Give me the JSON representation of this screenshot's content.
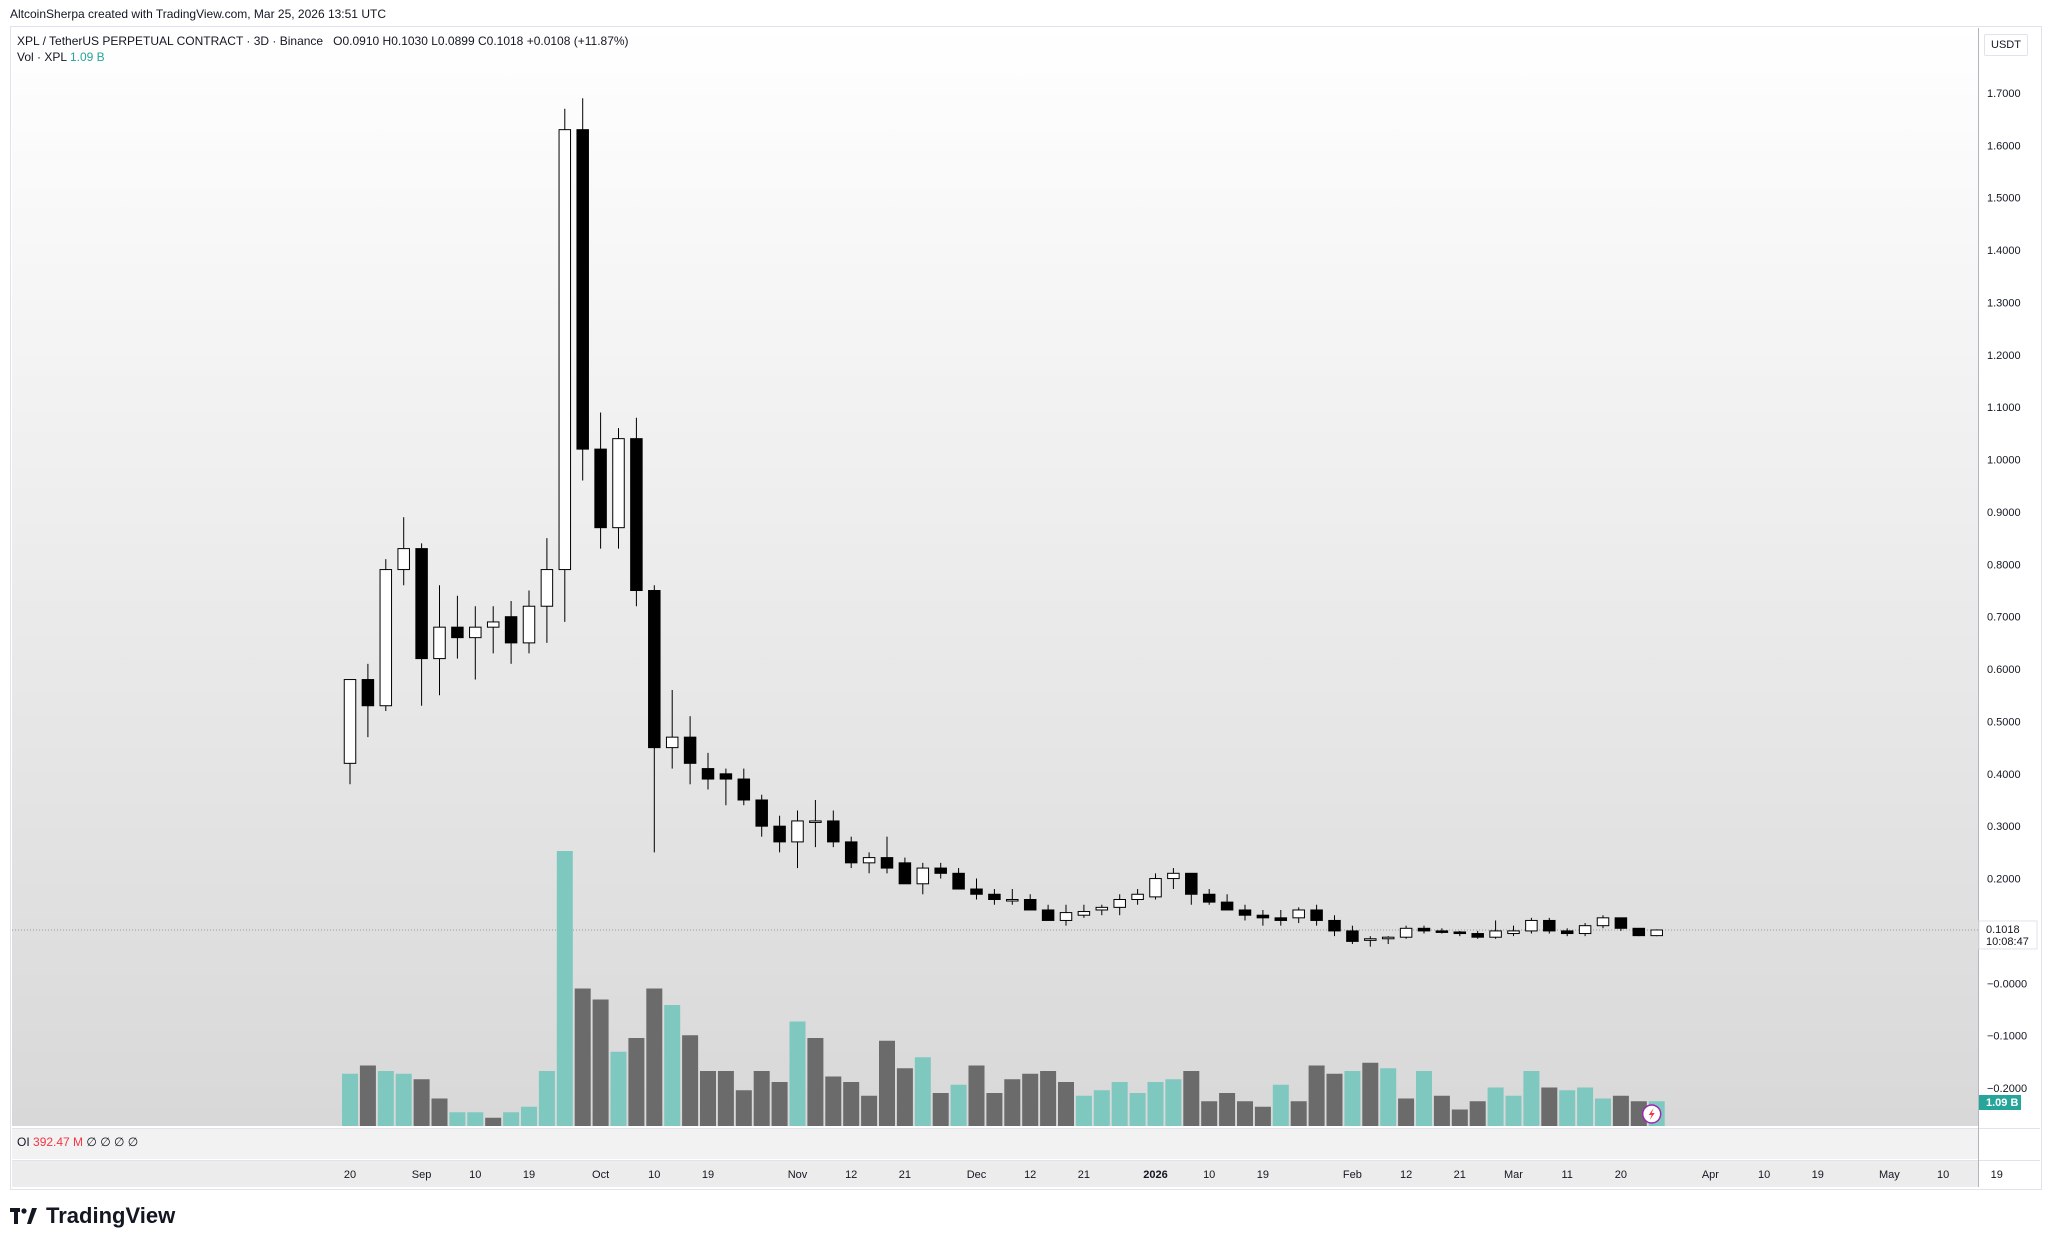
{
  "header": {
    "attribution": "AltcoinSherpa created with TradingView.com, Mar 25, 2026 13:51 UTC"
  },
  "legend": {
    "symbol": "XPL / TetherUS PERPETUAL CONTRACT · 3D · Binance",
    "o_label": "O",
    "o_value": "0.0910",
    "h_label": "H",
    "h_value": "0.1030",
    "l_label": "L",
    "l_value": "0.0899",
    "c_label": "C",
    "c_value": "0.1018",
    "change": "+0.0108 (+11.87%)",
    "vol_label": "Vol · XPL",
    "vol_value": "1.09 B"
  },
  "oi": {
    "label": "OI",
    "value": "392.47 M",
    "placeholders": "∅ ∅ ∅ ∅"
  },
  "currency": "USDT",
  "brand": "TradingView",
  "chart_data": {
    "type": "candlestick",
    "price_ticks": [
      "1.7000",
      "1.6000",
      "1.5000",
      "1.4000",
      "1.3000",
      "1.2000",
      "1.1000",
      "1.0000",
      "0.9000",
      "0.8000",
      "0.7000",
      "0.6000",
      "0.5000",
      "0.4000",
      "0.3000",
      "0.2000",
      "−0.0000",
      "−0.1000",
      "−0.2000"
    ],
    "price_tick_values": [
      1.7,
      1.6,
      1.5,
      1.4,
      1.3,
      1.2,
      1.1,
      1.0,
      0.9,
      0.8,
      0.7,
      0.6,
      0.5,
      0.4,
      0.3,
      0.2,
      0.0,
      -0.1,
      -0.2
    ],
    "last_price_label": "0.1018",
    "countdown_label": "10:08:47",
    "volume_badge": "1.09 B",
    "x_tick_labels": [
      "20",
      "Sep",
      "10",
      "19",
      "Oct",
      "10",
      "19",
      "Nov",
      "12",
      "21",
      "Dec",
      "12",
      "21",
      "2026",
      "10",
      "19",
      "Feb",
      "12",
      "21",
      "Mar",
      "11",
      "20",
      "Apr",
      "10",
      "19",
      "May",
      "10",
      "19"
    ],
    "x_tick_bar_index": [
      0,
      4,
      7,
      10,
      14,
      17,
      20,
      25,
      28,
      31,
      35,
      38,
      41,
      45,
      48,
      51,
      56,
      59,
      62,
      65,
      68,
      71,
      76,
      79,
      82,
      86,
      89,
      92
    ],
    "colors": {
      "up_body": "#ffffff",
      "down_body": "#000000",
      "wick": "#000000",
      "vol_up": "#7fc8c0",
      "vol_down": "#6b6b6b",
      "teal": "#26a69a"
    },
    "candles": [
      {
        "o": 0.42,
        "h": 0.58,
        "l": 0.38,
        "c": 0.58
      },
      {
        "o": 0.58,
        "h": 0.61,
        "l": 0.47,
        "c": 0.53
      },
      {
        "o": 0.53,
        "h": 0.81,
        "l": 0.52,
        "c": 0.79
      },
      {
        "o": 0.79,
        "h": 0.89,
        "l": 0.76,
        "c": 0.83
      },
      {
        "o": 0.83,
        "h": 0.84,
        "l": 0.53,
        "c": 0.62
      },
      {
        "o": 0.62,
        "h": 0.76,
        "l": 0.55,
        "c": 0.68
      },
      {
        "o": 0.68,
        "h": 0.74,
        "l": 0.62,
        "c": 0.66
      },
      {
        "o": 0.66,
        "h": 0.72,
        "l": 0.58,
        "c": 0.68
      },
      {
        "o": 0.68,
        "h": 0.72,
        "l": 0.63,
        "c": 0.69
      },
      {
        "o": 0.7,
        "h": 0.73,
        "l": 0.61,
        "c": 0.65
      },
      {
        "o": 0.65,
        "h": 0.75,
        "l": 0.63,
        "c": 0.72
      },
      {
        "o": 0.72,
        "h": 0.85,
        "l": 0.65,
        "c": 0.79
      },
      {
        "o": 0.79,
        "h": 1.67,
        "l": 0.69,
        "c": 1.63
      },
      {
        "o": 1.63,
        "h": 1.69,
        "l": 0.96,
        "c": 1.02
      },
      {
        "o": 1.02,
        "h": 1.09,
        "l": 0.83,
        "c": 0.87
      },
      {
        "o": 0.87,
        "h": 1.06,
        "l": 0.83,
        "c": 1.04
      },
      {
        "o": 1.04,
        "h": 1.08,
        "l": 0.72,
        "c": 0.75
      },
      {
        "o": 0.75,
        "h": 0.76,
        "l": 0.25,
        "c": 0.45
      },
      {
        "o": 0.45,
        "h": 0.56,
        "l": 0.41,
        "c": 0.47
      },
      {
        "o": 0.47,
        "h": 0.51,
        "l": 0.38,
        "c": 0.42
      },
      {
        "o": 0.41,
        "h": 0.44,
        "l": 0.37,
        "c": 0.39
      },
      {
        "o": 0.4,
        "h": 0.41,
        "l": 0.34,
        "c": 0.39
      },
      {
        "o": 0.39,
        "h": 0.41,
        "l": 0.34,
        "c": 0.35
      },
      {
        "o": 0.35,
        "h": 0.36,
        "l": 0.28,
        "c": 0.3
      },
      {
        "o": 0.3,
        "h": 0.32,
        "l": 0.25,
        "c": 0.27
      },
      {
        "o": 0.27,
        "h": 0.33,
        "l": 0.22,
        "c": 0.31
      },
      {
        "o": 0.31,
        "h": 0.35,
        "l": 0.26,
        "c": 0.31
      },
      {
        "o": 0.31,
        "h": 0.33,
        "l": 0.26,
        "c": 0.27
      },
      {
        "o": 0.27,
        "h": 0.28,
        "l": 0.22,
        "c": 0.23
      },
      {
        "o": 0.23,
        "h": 0.25,
        "l": 0.21,
        "c": 0.24
      },
      {
        "o": 0.24,
        "h": 0.28,
        "l": 0.21,
        "c": 0.22
      },
      {
        "o": 0.23,
        "h": 0.24,
        "l": 0.19,
        "c": 0.19
      },
      {
        "o": 0.19,
        "h": 0.23,
        "l": 0.17,
        "c": 0.22
      },
      {
        "o": 0.22,
        "h": 0.23,
        "l": 0.2,
        "c": 0.21
      },
      {
        "o": 0.21,
        "h": 0.22,
        "l": 0.18,
        "c": 0.18
      },
      {
        "o": 0.18,
        "h": 0.2,
        "l": 0.16,
        "c": 0.17
      },
      {
        "o": 0.17,
        "h": 0.18,
        "l": 0.15,
        "c": 0.16
      },
      {
        "o": 0.16,
        "h": 0.18,
        "l": 0.15,
        "c": 0.16
      },
      {
        "o": 0.16,
        "h": 0.17,
        "l": 0.14,
        "c": 0.14
      },
      {
        "o": 0.14,
        "h": 0.15,
        "l": 0.12,
        "c": 0.12
      },
      {
        "o": 0.12,
        "h": 0.15,
        "l": 0.11,
        "c": 0.135
      },
      {
        "o": 0.13,
        "h": 0.15,
        "l": 0.125,
        "c": 0.137
      },
      {
        "o": 0.14,
        "h": 0.15,
        "l": 0.13,
        "c": 0.145
      },
      {
        "o": 0.145,
        "h": 0.17,
        "l": 0.13,
        "c": 0.16
      },
      {
        "o": 0.16,
        "h": 0.18,
        "l": 0.15,
        "c": 0.17
      },
      {
        "o": 0.165,
        "h": 0.21,
        "l": 0.16,
        "c": 0.2
      },
      {
        "o": 0.2,
        "h": 0.22,
        "l": 0.18,
        "c": 0.21
      },
      {
        "o": 0.21,
        "h": 0.21,
        "l": 0.15,
        "c": 0.17
      },
      {
        "o": 0.17,
        "h": 0.18,
        "l": 0.15,
        "c": 0.155
      },
      {
        "o": 0.155,
        "h": 0.17,
        "l": 0.14,
        "c": 0.14
      },
      {
        "o": 0.14,
        "h": 0.15,
        "l": 0.12,
        "c": 0.13
      },
      {
        "o": 0.13,
        "h": 0.14,
        "l": 0.11,
        "c": 0.125
      },
      {
        "o": 0.125,
        "h": 0.14,
        "l": 0.11,
        "c": 0.12
      },
      {
        "o": 0.125,
        "h": 0.145,
        "l": 0.115,
        "c": 0.14
      },
      {
        "o": 0.14,
        "h": 0.15,
        "l": 0.11,
        "c": 0.12
      },
      {
        "o": 0.12,
        "h": 0.13,
        "l": 0.09,
        "c": 0.1
      },
      {
        "o": 0.1,
        "h": 0.11,
        "l": 0.075,
        "c": 0.08
      },
      {
        "o": 0.082,
        "h": 0.09,
        "l": 0.07,
        "c": 0.085
      },
      {
        "o": 0.085,
        "h": 0.09,
        "l": 0.075,
        "c": 0.088
      },
      {
        "o": 0.088,
        "h": 0.11,
        "l": 0.085,
        "c": 0.105
      },
      {
        "o": 0.105,
        "h": 0.11,
        "l": 0.095,
        "c": 0.1
      },
      {
        "o": 0.1,
        "h": 0.105,
        "l": 0.095,
        "c": 0.098
      },
      {
        "o": 0.098,
        "h": 0.1,
        "l": 0.09,
        "c": 0.095
      },
      {
        "o": 0.095,
        "h": 0.1,
        "l": 0.085,
        "c": 0.088
      },
      {
        "o": 0.088,
        "h": 0.12,
        "l": 0.085,
        "c": 0.1
      },
      {
        "o": 0.095,
        "h": 0.11,
        "l": 0.09,
        "c": 0.1
      },
      {
        "o": 0.1,
        "h": 0.125,
        "l": 0.095,
        "c": 0.12
      },
      {
        "o": 0.12,
        "h": 0.125,
        "l": 0.095,
        "c": 0.1
      },
      {
        "o": 0.1,
        "h": 0.105,
        "l": 0.09,
        "c": 0.095
      },
      {
        "o": 0.095,
        "h": 0.115,
        "l": 0.09,
        "c": 0.11
      },
      {
        "o": 0.11,
        "h": 0.13,
        "l": 0.105,
        "c": 0.125
      },
      {
        "o": 0.125,
        "h": 0.125,
        "l": 0.1,
        "c": 0.105
      },
      {
        "o": 0.105,
        "h": 0.105,
        "l": 0.09,
        "c": 0.091
      },
      {
        "o": 0.091,
        "h": 0.103,
        "l": 0.0899,
        "c": 0.1018
      }
    ],
    "volume": [
      0.19,
      0.22,
      0.2,
      0.19,
      0.17,
      0.1,
      0.05,
      0.05,
      0.03,
      0.05,
      0.07,
      0.2,
      1.0,
      0.5,
      0.46,
      0.27,
      0.32,
      0.5,
      0.44,
      0.33,
      0.2,
      0.2,
      0.13,
      0.2,
      0.16,
      0.38,
      0.32,
      0.18,
      0.16,
      0.11,
      0.31,
      0.21,
      0.25,
      0.12,
      0.15,
      0.22,
      0.12,
      0.17,
      0.19,
      0.2,
      0.16,
      0.11,
      0.13,
      0.16,
      0.12,
      0.16,
      0.17,
      0.2,
      0.09,
      0.12,
      0.09,
      0.07,
      0.15,
      0.09,
      0.22,
      0.19,
      0.2,
      0.23,
      0.21,
      0.1,
      0.2,
      0.11,
      0.06,
      0.09,
      0.14,
      0.11,
      0.2,
      0.14,
      0.13,
      0.14,
      0.1,
      0.11,
      0.09,
      0.09
    ],
    "volume_dir": [
      "u",
      "d",
      "u",
      "u",
      "d",
      "d",
      "u",
      "u",
      "d",
      "u",
      "u",
      "u",
      "u",
      "d",
      "d",
      "u",
      "d",
      "d",
      "u",
      "d",
      "d",
      "d",
      "d",
      "d",
      "d",
      "u",
      "d",
      "d",
      "d",
      "d",
      "d",
      "d",
      "u",
      "d",
      "u",
      "d",
      "d",
      "d",
      "d",
      "d",
      "d",
      "u",
      "u",
      "u",
      "u",
      "u",
      "u",
      "d",
      "d",
      "d",
      "d",
      "d",
      "u",
      "d",
      "d",
      "d",
      "u",
      "d",
      "u",
      "d",
      "u",
      "d",
      "d",
      "d",
      "u",
      "u",
      "u",
      "d",
      "u",
      "u",
      "u",
      "d",
      "d",
      "u"
    ]
  }
}
